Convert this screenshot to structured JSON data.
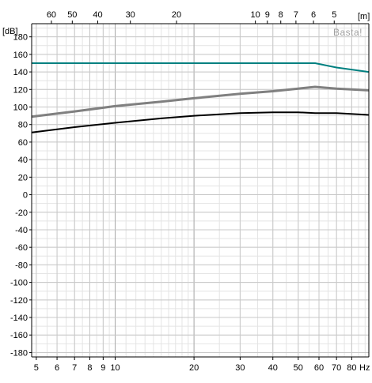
{
  "chart_data": {
    "type": "line",
    "title": "",
    "watermark": "Basta!",
    "x_scale": "log",
    "x_range": [
      4.8,
      93
    ],
    "x_unit": "Hz",
    "x_ticks": [
      {
        "value": 5,
        "label": "5"
      },
      {
        "value": 6,
        "label": "6"
      },
      {
        "value": 7,
        "label": "7"
      },
      {
        "value": 8,
        "label": "8"
      },
      {
        "value": 9,
        "label": "9"
      },
      {
        "value": 10,
        "label": "10"
      },
      {
        "value": 20,
        "label": "20"
      },
      {
        "value": 30,
        "label": "30"
      },
      {
        "value": 40,
        "label": "40"
      },
      {
        "value": 50,
        "label": "50"
      },
      {
        "value": 60,
        "label": "60"
      },
      {
        "value": 70,
        "label": "70"
      },
      {
        "value": 80,
        "label": "80"
      }
    ],
    "top_axis_unit": "[m]",
    "top_ticks": [
      {
        "freq": 5.71,
        "label": "60"
      },
      {
        "freq": 6.86,
        "label": "50"
      },
      {
        "freq": 8.58,
        "label": "40"
      },
      {
        "freq": 11.43,
        "label": "30"
      },
      {
        "freq": 17.15,
        "label": "20"
      },
      {
        "freq": 34.3,
        "label": "10"
      },
      {
        "freq": 38.11,
        "label": "9"
      },
      {
        "freq": 42.88,
        "label": "8"
      },
      {
        "freq": 49.0,
        "label": "7"
      },
      {
        "freq": 57.17,
        "label": "6"
      },
      {
        "freq": 68.6,
        "label": "5"
      }
    ],
    "y_unit": "[dB]",
    "y_range": [
      -185,
      195
    ],
    "y_ticks": [
      180,
      160,
      140,
      120,
      100,
      80,
      60,
      40,
      20,
      0,
      -20,
      -40,
      -60,
      -80,
      -100,
      -120,
      -140,
      -160,
      -180
    ],
    "grid": true,
    "series": [
      {
        "color": "#008080",
        "width": 2,
        "x": [
          4.8,
          10,
          20,
          40,
          58,
          70,
          93
        ],
        "y": [
          150,
          150,
          150,
          150,
          150,
          145,
          140
        ]
      },
      {
        "color": "#808080",
        "width": 3,
        "x": [
          4.8,
          7,
          10,
          15,
          20,
          30,
          40,
          50,
          58,
          70,
          93
        ],
        "y": [
          89,
          95,
          101,
          106,
          110,
          115,
          118,
          121,
          123,
          121,
          119
        ]
      },
      {
        "color": "#000000",
        "width": 2,
        "x": [
          4.8,
          7,
          10,
          15,
          20,
          30,
          40,
          50,
          58,
          70,
          93
        ],
        "y": [
          71,
          77,
          82,
          87,
          90,
          93,
          94,
          94,
          93,
          93,
          91
        ]
      }
    ]
  }
}
